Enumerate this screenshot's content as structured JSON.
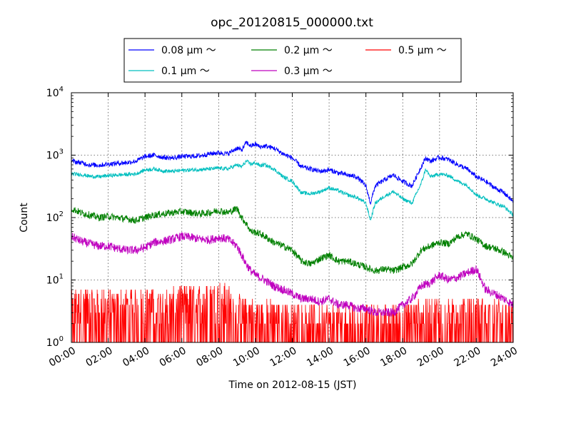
{
  "chart_data": {
    "type": "line",
    "title": "opc_20120815_000000.txt",
    "xlabel": "Time on 2012-08-15 (JST)",
    "ylabel": "Count",
    "x_unit": "hour of day",
    "xlim": [
      0,
      24
    ],
    "ylim": [
      1,
      10000
    ],
    "yscale": "log",
    "grid": true,
    "legend_position": "top-center",
    "x_tick_labels": [
      "00:00",
      "02:00",
      "04:00",
      "06:00",
      "08:00",
      "10:00",
      "12:00",
      "14:00",
      "16:00",
      "18:00",
      "20:00",
      "22:00",
      "24:00"
    ],
    "x_ticks": [
      0,
      2,
      4,
      6,
      8,
      10,
      12,
      14,
      16,
      18,
      20,
      22,
      24
    ],
    "y_ticks": [
      1,
      10,
      100,
      1000,
      10000
    ],
    "y_tick_exponents": [
      "0",
      "1",
      "2",
      "3",
      "4"
    ],
    "y_tick_base": "10",
    "series": [
      {
        "name": "0.08 μm ～",
        "color": "#0000ff",
        "x": [
          0,
          0.5,
          1,
          1.5,
          2,
          2.5,
          3,
          3.5,
          4,
          4.5,
          5,
          5.5,
          6,
          6.5,
          7,
          7.5,
          8,
          8.5,
          9,
          9.25,
          9.5,
          9.75,
          10,
          10.25,
          10.5,
          11,
          11.5,
          12,
          12.5,
          13,
          13.5,
          14,
          14.5,
          15,
          15.5,
          16,
          16.25,
          16.5,
          17,
          17.5,
          18,
          18.5,
          19,
          19.25,
          19.5,
          20,
          20.5,
          21,
          21.5,
          22,
          22.5,
          23,
          23.5,
          24
        ],
        "values": [
          800,
          760,
          700,
          690,
          720,
          740,
          760,
          800,
          950,
          1000,
          920,
          900,
          950,
          960,
          980,
          1050,
          1100,
          1050,
          1300,
          1200,
          1600,
          1400,
          1500,
          1350,
          1400,
          1300,
          1050,
          900,
          650,
          600,
          550,
          580,
          520,
          480,
          450,
          320,
          170,
          320,
          400,
          480,
          380,
          320,
          650,
          900,
          800,
          920,
          850,
          700,
          600,
          450,
          380,
          300,
          250,
          180
        ]
      },
      {
        "name": "0.1 μm ～",
        "color": "#00bfbf",
        "x": [
          0,
          0.5,
          1,
          1.5,
          2,
          2.5,
          3,
          3.5,
          4,
          4.5,
          5,
          5.5,
          6,
          6.5,
          7,
          7.5,
          8,
          8.5,
          9,
          9.25,
          9.5,
          9.75,
          10,
          10.25,
          10.5,
          11,
          11.5,
          12,
          12.5,
          13,
          13.5,
          14,
          14.5,
          15,
          15.5,
          16,
          16.25,
          16.5,
          17,
          17.5,
          18,
          18.5,
          19,
          19.25,
          19.5,
          20,
          20.5,
          21,
          21.5,
          22,
          22.5,
          23,
          23.5,
          24
        ],
        "values": [
          500,
          490,
          460,
          450,
          470,
          480,
          490,
          500,
          580,
          600,
          560,
          550,
          570,
          580,
          590,
          600,
          620,
          600,
          700,
          650,
          800,
          720,
          750,
          680,
          700,
          600,
          450,
          380,
          250,
          240,
          260,
          300,
          270,
          230,
          210,
          170,
          90,
          170,
          220,
          260,
          200,
          170,
          350,
          600,
          450,
          500,
          470,
          380,
          330,
          230,
          200,
          170,
          150,
          110
        ]
      },
      {
        "name": "0.2 μm ～",
        "color": "#008000",
        "x": [
          0,
          0.5,
          1,
          1.5,
          2,
          2.5,
          3,
          3.5,
          4,
          4.5,
          5,
          5.5,
          6,
          6.5,
          7,
          7.5,
          8,
          8.5,
          9,
          9.25,
          9.5,
          9.75,
          10,
          10.25,
          10.5,
          11,
          11.5,
          12,
          12.5,
          13,
          13.5,
          14,
          14.5,
          15,
          15.5,
          16,
          16.5,
          17,
          17.5,
          18,
          18.5,
          19,
          19.5,
          20,
          20.5,
          21,
          21.5,
          22,
          22.5,
          23,
          23.5,
          24
        ],
        "values": [
          140,
          120,
          110,
          100,
          105,
          100,
          95,
          90,
          100,
          110,
          115,
          120,
          125,
          120,
          115,
          120,
          130,
          120,
          140,
          100,
          80,
          60,
          58,
          55,
          50,
          40,
          35,
          30,
          20,
          18,
          22,
          25,
          20,
          20,
          18,
          16,
          14,
          15,
          14,
          16,
          18,
          30,
          35,
          40,
          38,
          50,
          55,
          45,
          35,
          32,
          28,
          22
        ]
      },
      {
        "name": "0.3 μm ～",
        "color": "#bf00bf",
        "x": [
          0,
          0.5,
          1,
          1.5,
          2,
          2.5,
          3,
          3.5,
          4,
          4.5,
          5,
          5.5,
          6,
          6.5,
          7,
          7.5,
          8,
          8.5,
          9,
          9.25,
          9.5,
          9.75,
          10,
          10.5,
          11,
          11.5,
          12,
          12.5,
          13,
          13.5,
          14,
          14.5,
          15,
          15.5,
          16,
          16.5,
          17,
          17.5,
          18,
          18.5,
          19,
          19.5,
          20,
          20.5,
          21,
          21.5,
          22,
          22.5,
          23,
          23.5,
          24
        ],
        "values": [
          50,
          42,
          38,
          35,
          35,
          32,
          30,
          30,
          33,
          40,
          42,
          45,
          50,
          48,
          45,
          44,
          48,
          45,
          35,
          25,
          18,
          14,
          12,
          10,
          8,
          7,
          6,
          5,
          5,
          4.5,
          5,
          4,
          4,
          3.5,
          3.5,
          3,
          3,
          3,
          4,
          5,
          8,
          9,
          12,
          10,
          11,
          13,
          15,
          7,
          6,
          5,
          4
        ]
      },
      {
        "name": "0.5 μm ～",
        "color": "#ff0000",
        "x": [
          0,
          1,
          2,
          3,
          4,
          5,
          6,
          7,
          8,
          8.5,
          9,
          10,
          11,
          12,
          13,
          14,
          15,
          16,
          17,
          18,
          19,
          20,
          21,
          22,
          23,
          24
        ],
        "values": [
          3,
          3,
          3,
          3,
          3,
          3,
          3.5,
          3.5,
          4,
          3.5,
          2.5,
          2,
          2,
          1.8,
          1.8,
          1.7,
          1.7,
          1.6,
          1.6,
          1.7,
          2,
          2.2,
          2.2,
          2.2,
          2,
          1.8
        ]
      }
    ]
  }
}
